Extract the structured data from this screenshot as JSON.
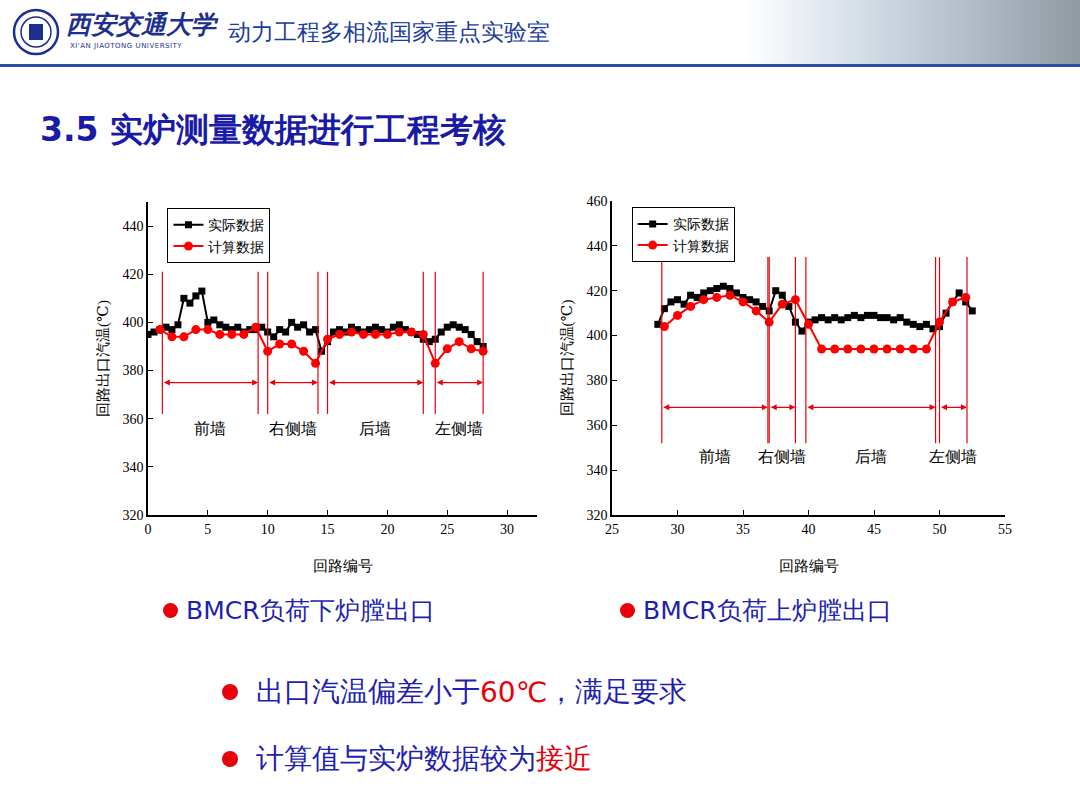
{
  "header": {
    "university": "西安交通大学",
    "university_en": "XI'AN JIAOTONG UNIVERSITY",
    "lab": "动力工程多相流国家重点实验室"
  },
  "title": "3.5 实炉测量数据进行工程考核",
  "chart_data": [
    {
      "type": "line",
      "caption": "BMCR负荷下炉膛出口",
      "x_label": "回路编号",
      "y_label": "回路出口汽温(℃)",
      "xlim": [
        0,
        32.5
      ],
      "xticks": [
        0,
        5,
        10,
        15,
        20,
        25,
        30
      ],
      "ylim": [
        320,
        450
      ],
      "yticks": [
        320,
        340,
        360,
        380,
        400,
        420,
        440
      ],
      "grid": false,
      "legend": "top-left",
      "series": [
        {
          "name": "实际数据",
          "color": "#000000",
          "marker": "square",
          "x": [
            0,
            0.5,
            1,
            1.5,
            2,
            2.5,
            3,
            3.5,
            4,
            4.5,
            5,
            5.5,
            6,
            6.5,
            7,
            7.5,
            8,
            8.5,
            9,
            9.5,
            10,
            10.5,
            11,
            11.5,
            12,
            12.5,
            13,
            13.5,
            14,
            14.5,
            15,
            15.5,
            16,
            16.5,
            17,
            17.5,
            18,
            18.5,
            19,
            19.5,
            20,
            20.5,
            21,
            21.5,
            22,
            22.5,
            23,
            23.5,
            24,
            24.5,
            25,
            25.5,
            26,
            26.5,
            27,
            27.5,
            28
          ],
          "values": [
            395,
            396,
            397,
            398,
            397,
            399,
            410,
            408,
            411,
            413,
            400,
            401,
            399,
            398,
            397,
            398,
            396,
            397,
            397,
            398,
            396,
            394,
            397,
            396,
            400,
            398,
            399,
            396,
            397,
            388,
            392,
            396,
            397,
            396,
            398,
            397,
            396,
            397,
            398,
            397,
            396,
            398,
            399,
            397,
            396,
            395,
            393,
            392,
            393,
            396,
            398,
            399,
            398,
            397,
            395,
            392,
            390
          ]
        },
        {
          "name": "计算数据",
          "color": "#ff0000",
          "marker": "circle",
          "x": [
            1,
            2,
            3,
            4,
            5,
            6,
            7,
            8,
            9,
            10,
            11,
            12,
            13,
            14,
            15,
            16,
            17,
            18,
            19,
            20,
            21,
            22,
            23,
            24,
            25,
            26,
            27,
            28
          ],
          "values": [
            397,
            394,
            394,
            397,
            397,
            395,
            395,
            395,
            398,
            388,
            391,
            391,
            388,
            383,
            393,
            395,
            396,
            395,
            395,
            395,
            396,
            396,
            395,
            383,
            389,
            392,
            389,
            388
          ]
        }
      ],
      "sections": [
        {
          "label": "前墙",
          "start": 1.2,
          "end": 9.2
        },
        {
          "label": "右侧墙",
          "start": 10,
          "end": 14.2
        },
        {
          "label": "后墙",
          "start": 15,
          "end": 23
        },
        {
          "label": "左侧墙",
          "start": 24,
          "end": 28
        }
      ],
      "section_line_y": [
        362,
        421
      ],
      "arrow_y": 375,
      "label_y": 356
    },
    {
      "type": "line",
      "caption": "BMCR负荷上炉膛出口",
      "x_label": "回路编号",
      "y_label": "回路出口汽温(℃)",
      "xlim": [
        25,
        55
      ],
      "xticks": [
        25,
        30,
        35,
        40,
        45,
        50,
        55
      ],
      "ylim": [
        320,
        460
      ],
      "yticks": [
        320,
        340,
        360,
        380,
        400,
        420,
        440,
        460
      ],
      "grid": false,
      "legend": "top-left",
      "series": [
        {
          "name": "实际数据",
          "color": "#000000",
          "marker": "square",
          "x": [
            28.5,
            29,
            29.5,
            30,
            30.5,
            31,
            31.5,
            32,
            32.5,
            33,
            33.5,
            34,
            34.5,
            35,
            35.5,
            36,
            36.5,
            37,
            37.5,
            38,
            38.5,
            39,
            39.5,
            40,
            40.5,
            41,
            41.5,
            42,
            42.5,
            43,
            43.5,
            44,
            44.5,
            45,
            45.5,
            46,
            46.5,
            47,
            47.5,
            48,
            48.5,
            49,
            49.5,
            50,
            50.5,
            51,
            51.5,
            52,
            52.5
          ],
          "values": [
            405,
            412,
            415,
            416,
            414,
            418,
            417,
            419,
            420,
            421,
            422,
            421,
            419,
            417,
            416,
            415,
            413,
            411,
            420,
            418,
            413,
            406,
            402,
            406,
            407,
            408,
            407,
            408,
            407,
            408,
            409,
            408,
            409,
            409,
            408,
            408,
            407,
            408,
            406,
            405,
            404,
            405,
            403,
            404,
            410,
            415,
            419,
            415,
            411
          ]
        },
        {
          "name": "计算数据",
          "color": "#ff0000",
          "marker": "circle",
          "x": [
            29,
            30,
            31,
            32,
            33,
            34,
            35,
            36,
            37,
            38,
            39,
            40,
            41,
            42,
            43,
            44,
            45,
            46,
            47,
            48,
            49,
            50,
            51,
            52
          ],
          "values": [
            404,
            409,
            413,
            416,
            417,
            418,
            415,
            411,
            406,
            414,
            416,
            405,
            394,
            394,
            394,
            394,
            394,
            394,
            394,
            394,
            394,
            406,
            415,
            417
          ]
        }
      ],
      "sections": [
        {
          "label": "前墙",
          "start": 28.8,
          "end": 36.9
        },
        {
          "label": "右侧墙",
          "start": 37,
          "end": 39
        },
        {
          "label": "后墙",
          "start": 39.8,
          "end": 49.7
        },
        {
          "label": "左侧墙",
          "start": 50,
          "end": 52.1
        }
      ],
      "section_line_y": [
        352,
        435
      ],
      "arrow_y": 368,
      "label_y": 346
    }
  ],
  "bullets": [
    [
      {
        "text": "出口汽温偏差小于"
      },
      {
        "text": "60℃",
        "highlight": true
      },
      {
        "text": "，满足要求"
      }
    ],
    [
      {
        "text": "计算值与实炉数据较为"
      },
      {
        "text": "接近",
        "highlight": true
      }
    ]
  ]
}
